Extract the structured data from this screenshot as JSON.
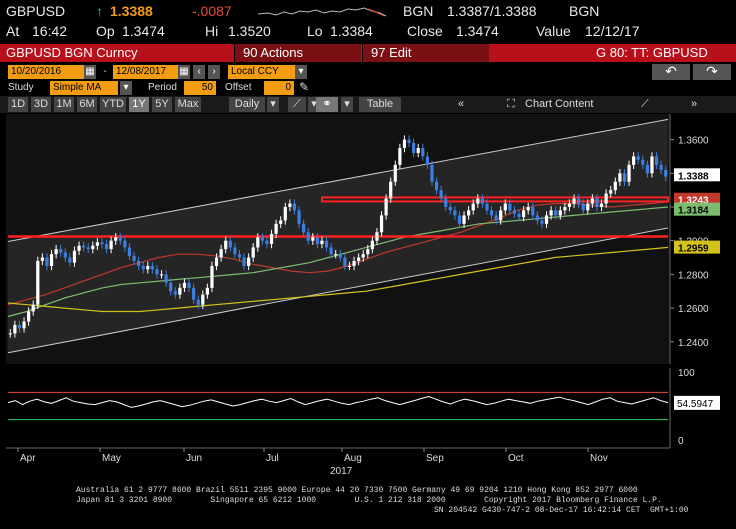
{
  "ticker": {
    "symbol": "GBPUSD",
    "last": "1.3388",
    "change": "-.0087",
    "source": "BGN",
    "bid_ask": "1.3387/1.3388",
    "source2": "BGN",
    "at_label": "At",
    "time": "16:42",
    "op_label": "Op",
    "open": "1.3474",
    "hi_label": "Hi",
    "high": "1.3520",
    "lo_label": "Lo",
    "low": "1.3384",
    "close_label": "Close",
    "close": "1.3474",
    "value_label": "Value",
    "value_date": "12/12/17"
  },
  "titlebar": {
    "title": "GBPUSD BGN Curncy",
    "actions": "90 Actions",
    "edit": "97 Edit",
    "function": "G 80: TT: GBPUSD"
  },
  "controls": {
    "start_date": "10/20/2016",
    "end_date": "12/08/2017",
    "currency": "Local CCY",
    "study_label": "Study",
    "study_value": "Simple MA",
    "period_label": "Period",
    "period_value": "50",
    "offset_label": "Offset",
    "offset_value": "0"
  },
  "toolbar": {
    "ranges": [
      "1D",
      "3D",
      "1M",
      "6M",
      "YTD",
      "1Y",
      "5Y",
      "Max"
    ],
    "active_range": "1Y",
    "frequency": "Daily",
    "table_label": "Table",
    "chart_content_label": "Chart Content"
  },
  "colors": {
    "accent_orange": "#f39c12",
    "title_red": "#b8101a",
    "candle_blue": "#3b7fe0",
    "candle_white": "#ffffff",
    "ma_magenta": "#c0392b",
    "ma_green": "#7dbb6e",
    "ma_yellow": "#d4c21a",
    "resistance_red": "#ff2020",
    "channel_white": "#cccccc"
  },
  "chart_data": {
    "type": "line",
    "price_ticks": [
      "1.3600",
      "1.3400",
      "1.3200",
      "1.3000",
      "1.2800",
      "1.2600",
      "1.2400"
    ],
    "tick_values": [
      1.36,
      1.34,
      1.32,
      1.3,
      1.28,
      1.26,
      1.24
    ],
    "ylim": [
      1.228,
      1.374
    ],
    "x_labels": [
      "Apr",
      "May",
      "Jun",
      "Jul",
      "Aug",
      "Sep",
      "Oct",
      "Nov"
    ],
    "year_label": "2017",
    "price_series": [
      1.245,
      1.25,
      1.248,
      1.252,
      1.258,
      1.262,
      1.288,
      1.29,
      1.285,
      1.292,
      1.295,
      1.293,
      1.29,
      1.287,
      1.294,
      1.297,
      1.296,
      1.295,
      1.297,
      1.299,
      1.298,
      1.295,
      1.3,
      1.302,
      1.3,
      1.296,
      1.291,
      1.288,
      1.285,
      1.283,
      1.285,
      1.283,
      1.28,
      1.28,
      1.275,
      1.27,
      1.268,
      1.272,
      1.275,
      1.272,
      1.265,
      1.262,
      1.268,
      1.272,
      1.285,
      1.29,
      1.295,
      1.3,
      1.296,
      1.292,
      1.29,
      1.285,
      1.29,
      1.296,
      1.302,
      1.3,
      1.298,
      1.304,
      1.31,
      1.312,
      1.32,
      1.322,
      1.318,
      1.31,
      1.305,
      1.3,
      1.302,
      1.298,
      1.3,
      1.296,
      1.292,
      1.292,
      1.29,
      1.285,
      1.285,
      1.288,
      1.29,
      1.292,
      1.295,
      1.3,
      1.305,
      1.315,
      1.325,
      1.335,
      1.345,
      1.355,
      1.36,
      1.358,
      1.352,
      1.355,
      1.35,
      1.345,
      1.335,
      1.33,
      1.325,
      1.32,
      1.318,
      1.315,
      1.31,
      1.315,
      1.318,
      1.322,
      1.325,
      1.322,
      1.318,
      1.315,
      1.312,
      1.318,
      1.322,
      1.318,
      1.316,
      1.314,
      1.318,
      1.32,
      1.315,
      1.312,
      1.31,
      1.315,
      1.318,
      1.315,
      1.318,
      1.32,
      1.322,
      1.325,
      1.322,
      1.318,
      1.322,
      1.325,
      1.32,
      1.322,
      1.328,
      1.33,
      1.335,
      1.34,
      1.335,
      1.345,
      1.35,
      1.348,
      1.345,
      1.34,
      1.35,
      1.345,
      1.342,
      1.338
    ],
    "series": [
      {
        "values_key": "price_series"
      },
      {
        "values_key": "ma_magenta",
        "values": [
          1.262,
          1.265,
          1.268,
          1.272,
          1.276,
          1.28,
          1.284,
          1.287,
          1.29,
          1.292,
          1.292,
          1.291,
          1.289,
          1.286,
          1.284,
          1.282,
          1.281,
          1.282,
          1.285,
          1.289,
          1.293,
          1.296,
          1.299,
          1.302,
          1.305,
          1.309,
          1.313,
          1.318,
          1.321,
          1.322,
          1.322,
          1.321,
          1.32,
          1.321,
          1.322,
          1.323
        ]
      },
      {
        "values_key": "ma_green",
        "values": [
          1.255,
          1.258,
          1.262,
          1.266,
          1.269,
          1.272,
          1.274,
          1.275,
          1.276,
          1.277,
          1.278,
          1.279,
          1.28,
          1.281,
          1.283,
          1.285,
          1.287,
          1.29,
          1.293,
          1.296,
          1.299,
          1.302,
          1.304,
          1.306,
          1.308,
          1.31,
          1.311,
          1.312,
          1.313,
          1.314,
          1.315,
          1.316,
          1.317,
          1.318,
          1.319,
          1.32
        ]
      },
      {
        "values_key": "ma_yellow",
        "values": [
          1.263,
          1.262,
          1.261,
          1.26,
          1.259,
          1.258,
          1.258,
          1.258,
          1.259,
          1.26,
          1.261,
          1.262,
          1.263,
          1.264,
          1.265,
          1.266,
          1.267,
          1.268,
          1.269,
          1.27,
          1.272,
          1.274,
          1.276,
          1.278,
          1.28,
          1.282,
          1.284,
          1.286,
          1.288,
          1.29,
          1.291,
          1.292,
          1.293,
          1.294,
          1.295,
          1.296
        ]
      }
    ],
    "markers": [
      {
        "label": "1.3388",
        "value": 1.3388,
        "color": "#ffffff"
      },
      {
        "label": "1.3243",
        "value": 1.3243,
        "color": "#c0392b"
      },
      {
        "label": "1.3184",
        "value": 1.3184,
        "color": "#7dbb6e"
      },
      {
        "label": "1.2959",
        "value": 1.2959,
        "color": "#d4c21a"
      }
    ],
    "horizontal_levels": [
      1.3245,
      1.3025
    ],
    "rsi": {
      "ticks": [
        "100",
        "0"
      ],
      "tick_values": [
        100,
        0
      ],
      "levels": [
        70,
        30
      ],
      "last_label": "54.5947",
      "last": 54.5947,
      "values": [
        55,
        58,
        52,
        57,
        60,
        56,
        54,
        58,
        62,
        57,
        55,
        53,
        52,
        55,
        58,
        56,
        52,
        48,
        50,
        53,
        56,
        58,
        55,
        52,
        49,
        51,
        54,
        57,
        59,
        56,
        53,
        50,
        52,
        55,
        58,
        60,
        57,
        55,
        58,
        61,
        56,
        52,
        55,
        58,
        60,
        57,
        54,
        52,
        55,
        57,
        60,
        62,
        58,
        55,
        52,
        55,
        58,
        61,
        64,
        60,
        56,
        53,
        57,
        60,
        58,
        55,
        52,
        54,
        57,
        60,
        58,
        56,
        54,
        57,
        59,
        61,
        63,
        60,
        58,
        55,
        52,
        56,
        60,
        62,
        57,
        55,
        53,
        56,
        59,
        62,
        58,
        55
      ]
    }
  },
  "footer": {
    "line1": "Australia 61 2 9777 8600 Brazil 5511 2395 9000 Europe 44 20 7330 7500 Germany 49 69 9204 1210 Hong Kong 852 2977 6000",
    "line2": "Japan 81 3 3201 8900        Singapore 65 6212 1000        U.S. 1 212 318 2000        Copyright 2017 Bloomberg Finance L.P.",
    "line3": "SN 204542 G430-747-2 08-Dec-17 16:42:14 CET  GMT+1:00"
  }
}
